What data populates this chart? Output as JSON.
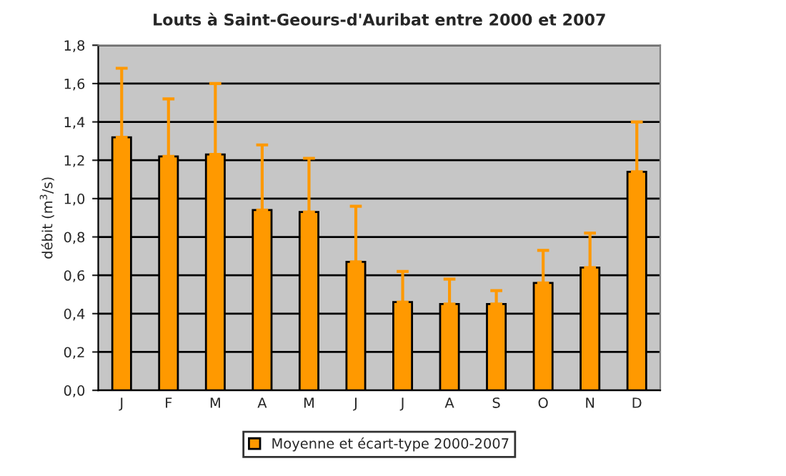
{
  "chart_data": {
    "type": "bar",
    "title": "Louts à Saint-Geours-d'Auribat entre 2000 et 2007",
    "ylabel": "débit (m$^{3}$/s)",
    "categories": [
      "J",
      "F",
      "M",
      "A",
      "M",
      "J",
      "J",
      "A",
      "S",
      "O",
      "N",
      "D"
    ],
    "series": [
      {
        "name": "Moyenne et écart-type 2000-2007",
        "color": "#ff9900",
        "values": [
          1.32,
          1.22,
          1.23,
          0.94,
          0.93,
          0.67,
          0.46,
          0.45,
          0.45,
          0.56,
          0.64,
          1.14
        ],
        "errors": [
          [
            1.32,
            1.68
          ],
          [
            1.22,
            1.52
          ],
          [
            1.23,
            1.6
          ],
          [
            0.94,
            1.28
          ],
          [
            0.93,
            1.21
          ],
          [
            0.67,
            0.96
          ],
          [
            0.46,
            0.62
          ],
          [
            0.45,
            0.58
          ],
          [
            0.45,
            0.52
          ],
          [
            0.56,
            0.73
          ],
          [
            0.64,
            0.82
          ],
          [
            1.14,
            1.4
          ]
        ]
      }
    ],
    "ylim": [
      0,
      1.8
    ],
    "yticks": [
      {
        "value": 0,
        "label": "0,0"
      },
      {
        "value": 0.2,
        "label": "0,2"
      },
      {
        "value": 0.4,
        "label": "0,4"
      },
      {
        "value": 0.6,
        "label": "0,6"
      },
      {
        "value": 0.8,
        "label": "0,8"
      },
      {
        "value": 1.0,
        "label": "1,0"
      },
      {
        "value": 1.2,
        "label": "1,2"
      },
      {
        "value": 1.4,
        "label": "1,4"
      },
      {
        "value": 1.6,
        "label": "1,6"
      },
      {
        "value": 1.8,
        "label": "1,8"
      }
    ],
    "grid": "y",
    "legend": "bottom"
  }
}
